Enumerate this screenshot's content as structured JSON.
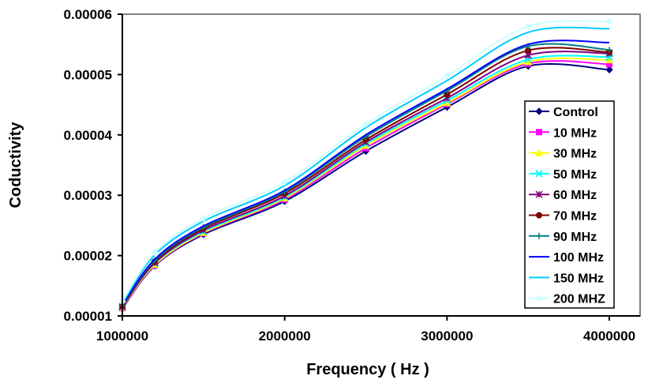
{
  "chart_data": {
    "type": "line",
    "title": "",
    "xlabel": "Frequency ( Hz )",
    "ylabel": "Coductivity",
    "xlim": [
      1000000,
      4200000
    ],
    "ylim": [
      1e-05,
      6e-05
    ],
    "xticks": [
      "1000000",
      "2000000",
      "3000000",
      "4000000"
    ],
    "xtick_values": [
      1000000,
      2000000,
      3000000,
      4000000
    ],
    "yticks": [
      "0.00001",
      "0.00002",
      "0.00003",
      "0.00004",
      "0.00005",
      "0.00006"
    ],
    "ytick_values": [
      1e-05,
      2e-05,
      3e-05,
      4e-05,
      5e-05,
      6e-05
    ],
    "grid": false,
    "legend_position": "right",
    "x": [
      1000000,
      1200000,
      1500000,
      2000000,
      2500000,
      3000000,
      3500000,
      4000000
    ],
    "series": [
      {
        "name": "Control",
        "color": "#000080",
        "marker": "diamond",
        "values": [
          1.12e-05,
          1.83e-05,
          2.35e-05,
          2.9e-05,
          3.73e-05,
          4.46e-05,
          5.14e-05,
          5.08e-05
        ]
      },
      {
        "name": "10 MHz",
        "color": "#FF00FF",
        "marker": "square",
        "values": [
          1.13e-05,
          1.84e-05,
          2.37e-05,
          2.93e-05,
          3.78e-05,
          4.51e-05,
          5.18e-05,
          5.17e-05
        ]
      },
      {
        "name": "30 MHz",
        "color": "#FFFF00",
        "marker": "triangle",
        "values": [
          1.14e-05,
          1.85e-05,
          2.38e-05,
          2.95e-05,
          3.82e-05,
          4.53e-05,
          5.21e-05,
          5.24e-05
        ]
      },
      {
        "name": "50 MHz",
        "color": "#00FFFF",
        "marker": "x",
        "values": [
          1.15e-05,
          1.87e-05,
          2.4e-05,
          2.97e-05,
          3.85e-05,
          4.57e-05,
          5.25e-05,
          5.29e-05
        ]
      },
      {
        "name": "60 MHz",
        "color": "#800080",
        "marker": "star",
        "values": [
          1.15e-05,
          1.88e-05,
          2.42e-05,
          2.99e-05,
          3.88e-05,
          4.61e-05,
          5.32e-05,
          5.35e-05
        ]
      },
      {
        "name": "70 MHz",
        "color": "#800000",
        "marker": "circle",
        "values": [
          1.16e-05,
          1.9e-05,
          2.45e-05,
          3.03e-05,
          3.92e-05,
          4.67e-05,
          5.4e-05,
          5.37e-05
        ]
      },
      {
        "name": "90 MHz",
        "color": "#008080",
        "marker": "plus",
        "values": [
          1.17e-05,
          1.92e-05,
          2.47e-05,
          3.06e-05,
          3.97e-05,
          4.73e-05,
          5.47e-05,
          5.41e-05
        ]
      },
      {
        "name": "100 MHz",
        "color": "#0000FF",
        "marker": "none",
        "values": [
          1.18e-05,
          1.94e-05,
          2.49e-05,
          3.08e-05,
          4e-05,
          4.76e-05,
          5.5e-05,
          5.53e-05
        ]
      },
      {
        "name": "150 MHz",
        "color": "#00CCFF",
        "marker": "none",
        "values": [
          1.21e-05,
          2.01e-05,
          2.57e-05,
          3.16e-05,
          4.12e-05,
          4.9e-05,
          5.7e-05,
          5.76e-05
        ]
      },
      {
        "name": "200 MHZ",
        "color": "#CCFFFF",
        "marker": "diamond",
        "values": [
          1.24e-05,
          2.05e-05,
          2.62e-05,
          3.22e-05,
          4.18e-05,
          4.98e-05,
          5.8e-05,
          5.88e-05
        ]
      }
    ]
  }
}
